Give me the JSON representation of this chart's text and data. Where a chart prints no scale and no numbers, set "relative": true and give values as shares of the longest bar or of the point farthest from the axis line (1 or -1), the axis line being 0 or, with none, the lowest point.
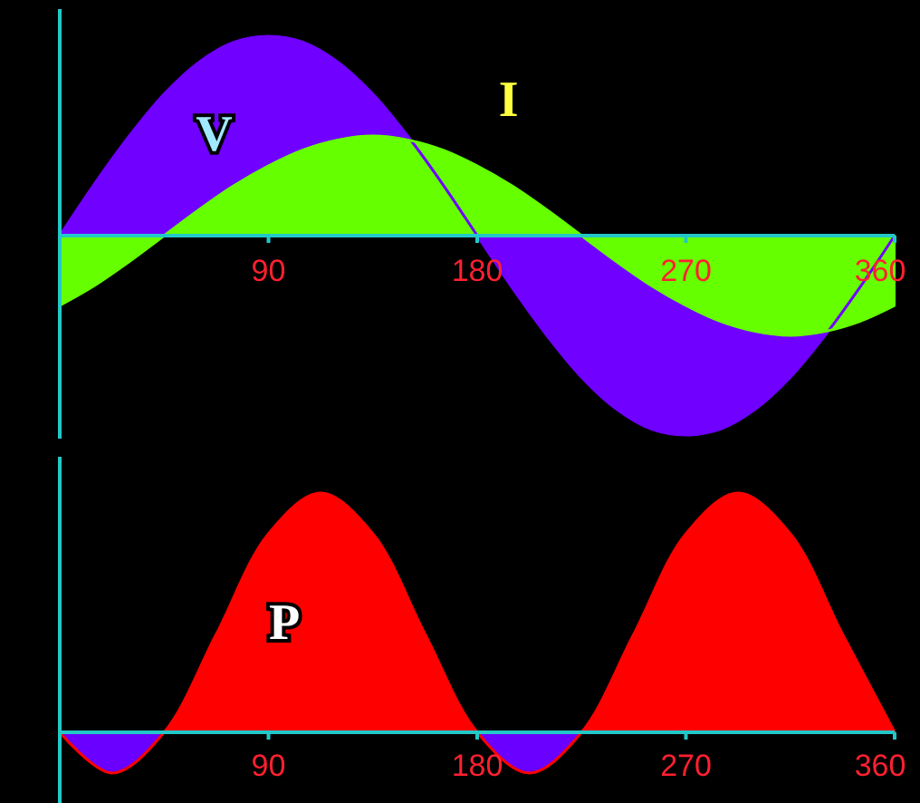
{
  "chart_data": [
    {
      "type": "area",
      "relative": true,
      "xlim": [
        0,
        360
      ],
      "xticks": [
        90,
        180,
        270,
        360
      ],
      "x": [
        0,
        15,
        30,
        45,
        60,
        75,
        90,
        105,
        120,
        135,
        150,
        165,
        180,
        195,
        210,
        225,
        240,
        255,
        270,
        285,
        300,
        315,
        330,
        345,
        360
      ],
      "series": [
        {
          "name": "V",
          "color": "#7000ff",
          "values": [
            0,
            0.26,
            0.5,
            0.71,
            0.87,
            0.97,
            1,
            0.97,
            0.87,
            0.71,
            0.5,
            0.26,
            0,
            -0.26,
            -0.5,
            -0.71,
            -0.87,
            -0.97,
            -1,
            -0.97,
            -0.87,
            -0.71,
            -0.5,
            -0.26,
            0
          ]
        },
        {
          "name": "I",
          "color": "#66ff00",
          "values": [
            -0.35,
            -0.25,
            -0.13,
            0,
            0.13,
            0.25,
            0.35,
            0.43,
            0.48,
            0.5,
            0.48,
            0.43,
            0.35,
            0.25,
            0.13,
            0,
            -0.13,
            -0.25,
            -0.35,
            -0.43,
            -0.48,
            -0.5,
            -0.48,
            -0.43,
            -0.35
          ]
        }
      ]
    },
    {
      "type": "area",
      "relative": true,
      "xlim": [
        0,
        360
      ],
      "xticks": [
        90,
        180,
        270,
        360
      ],
      "x": [
        0,
        22.5,
        45,
        67.5,
        90,
        112.5,
        135,
        157.5,
        180,
        202.5,
        225,
        247.5,
        270,
        292.5,
        315,
        337.5,
        360
      ],
      "series": [
        {
          "name": "P",
          "color": "#ff0000",
          "values": [
            0,
            -0.17,
            0,
            0.41,
            0.83,
            1,
            0.83,
            0.41,
            0,
            -0.17,
            0,
            0.41,
            0.83,
            1,
            0.83,
            0.41,
            0
          ]
        }
      ]
    }
  ]
}
